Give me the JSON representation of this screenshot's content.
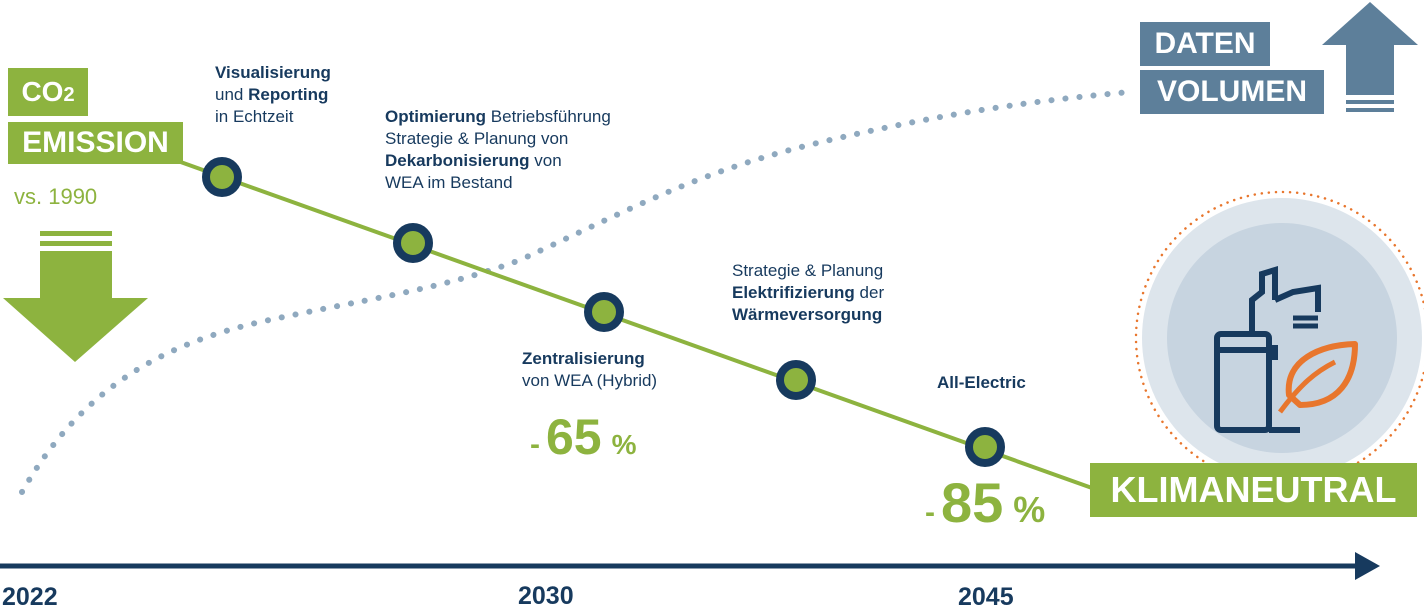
{
  "co2": {
    "label": "CO",
    "sub": "2"
  },
  "emission_label": "EMISSION",
  "baseline": "vs. 1990",
  "data_volume": {
    "line1": "DATEN",
    "line2": "VOLUMEN"
  },
  "milestones": [
    {
      "bold1": "Visualisierung",
      "text1": "",
      "pre2": "und ",
      "bold2": "Reporting",
      "text3": "in Echtzeit"
    },
    {
      "bold1": "Optimierung",
      "text1": " Betriebsführung",
      "line2": "Strategie & Planung von",
      "bold3": "Dekarbonisierung",
      "text3": " von",
      "line4": "WEA im Bestand"
    },
    {
      "bold1": "Zentralisierung",
      "line2": "von WEA (Hybrid)"
    },
    {
      "line1": "Strategie & Planung",
      "bold2": "Elektrifizierung",
      "text2": " der",
      "bold3": "Wärmeversorgung"
    },
    {
      "bold1": "All-Electric"
    }
  ],
  "reductions": [
    {
      "minus": "-",
      "value": "65",
      "unit": "%"
    },
    {
      "minus": "-",
      "value": "85",
      "unit": "%"
    }
  ],
  "goal_label": "KLIMANEUTRAL",
  "years": [
    "2022",
    "2030",
    "2045"
  ],
  "colors": {
    "green": "#8db33f",
    "navy": "#173a5e",
    "steel": "#5d7f9a",
    "dots": "#8fa9bf",
    "orange": "#e8762d"
  },
  "icons": [
    "down-arrow-icon",
    "up-arrow-icon",
    "factory-leaf-icon"
  ]
}
